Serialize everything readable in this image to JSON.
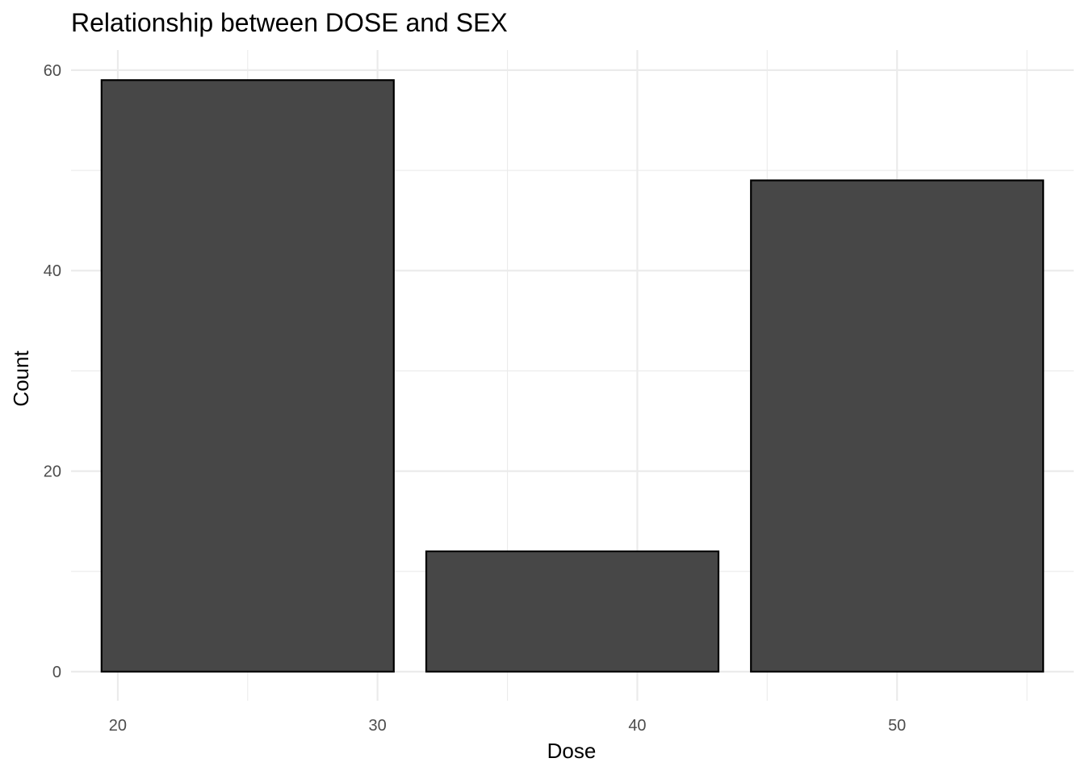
{
  "chart_data": {
    "type": "bar",
    "title": "Relationship between DOSE and SEX",
    "xlabel": "Dose",
    "ylabel": "Count",
    "bars": [
      {
        "x": 25,
        "value": 59
      },
      {
        "x": 37.5,
        "value": 12
      },
      {
        "x": 50,
        "value": 49
      }
    ],
    "bin_width": 11.25,
    "xlim": [
      18.2,
      56.8
    ],
    "ylim": [
      -2.9,
      62
    ],
    "x_ticks": [
      20,
      30,
      40,
      50
    ],
    "y_ticks": [
      0,
      20,
      40,
      60
    ],
    "grid": true,
    "bar_fill": "#474747",
    "bar_outline": "#000000",
    "gridline_color": "#ebebeb"
  }
}
